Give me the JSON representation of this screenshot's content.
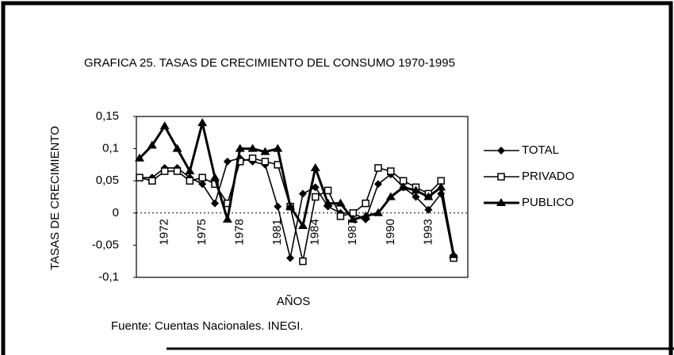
{
  "chart_data": {
    "type": "line",
    "title": "GRAFICA 25. TASAS DE CRECIMIENTO DEL CONSUMO  1970-1995",
    "x_label": "AÑOS",
    "y_label": "TASAS DE CRECIMIENTO",
    "source": "Fuente: Cuentas Nacionales. INEGI.",
    "categories": [
      null,
      null,
      "1972",
      null,
      null,
      "1975",
      null,
      null,
      "1978",
      null,
      null,
      "1981",
      null,
      null,
      "1984",
      null,
      null,
      "1987",
      null,
      null,
      "1990",
      null,
      null,
      "1993",
      null,
      null
    ],
    "ylim": [
      -0.1,
      0.15
    ],
    "yticks": [
      {
        "value": 0.15,
        "label": "0,15"
      },
      {
        "value": 0.1,
        "label": "0,1"
      },
      {
        "value": 0.05,
        "label": "0,05"
      },
      0,
      {
        "value": -0.05,
        "label": "-0,05"
      },
      {
        "value": -0.1,
        "label": "-0,1"
      }
    ],
    "legend": "right",
    "series": [
      {
        "name": "TOTAL",
        "color": "#000000",
        "marker": "diamond",
        "values": [
          0.055,
          0.055,
          0.07,
          0.07,
          0.055,
          0.045,
          0.015,
          0.08,
          0.085,
          0.08,
          0.075,
          0.01,
          -0.07,
          0.03,
          0.04,
          0.01,
          0.0,
          0.0,
          -0.01,
          0.045,
          0.06,
          0.04,
          0.025,
          0.005,
          0.03,
          -0.07
        ]
      },
      {
        "name": "PRIVADO",
        "color": "#000000",
        "marker": "square",
        "values": [
          0.055,
          0.05,
          0.065,
          0.065,
          0.05,
          0.055,
          0.045,
          0.015,
          0.08,
          0.085,
          0.08,
          0.075,
          0.01,
          -0.075,
          0.025,
          0.035,
          -0.005,
          0.0,
          0.015,
          0.07,
          0.065,
          0.05,
          0.04,
          0.03,
          0.05,
          -0.07
        ]
      },
      {
        "name": "PUBLICO",
        "color": "#000000",
        "marker": "triangle",
        "values": [
          0.085,
          0.105,
          0.135,
          0.1,
          0.065,
          0.14,
          0.055,
          -0.01,
          0.1,
          0.1,
          0.095,
          0.1,
          0.01,
          -0.02,
          0.07,
          0.015,
          0.015,
          -0.01,
          -0.005,
          0.0,
          0.025,
          0.04,
          0.035,
          0.025,
          0.04,
          -0.065
        ]
      }
    ]
  }
}
